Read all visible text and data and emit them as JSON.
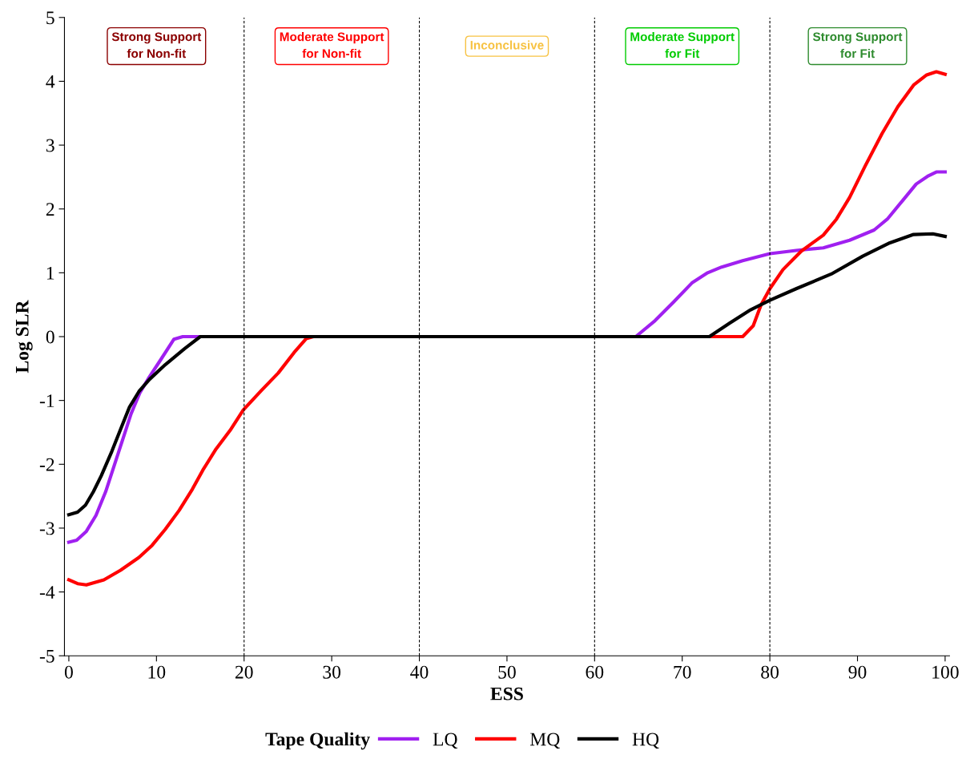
{
  "chart_data": {
    "type": "line",
    "xlabel": "ESS",
    "ylabel": "Log SLR",
    "legend_title": "Tape Quality",
    "xlim": [
      -0.5,
      100.5
    ],
    "ylim": [
      -5,
      5
    ],
    "xticks": [
      0,
      10,
      20,
      30,
      40,
      50,
      60,
      70,
      80,
      90,
      100
    ],
    "yticks": [
      -5,
      -4,
      -3,
      -2,
      -1,
      0,
      1,
      2,
      3,
      4,
      5
    ],
    "grid": false,
    "legend": "bottom",
    "marker": "none",
    "line_style": "solid",
    "series": [
      {
        "name": "LQ",
        "color": "#a020f0",
        "x": [
          0,
          0.9,
          2.0,
          3.1,
          4.2,
          5.2,
          6.2,
          7.1,
          8.1,
          9.2,
          10.4,
          12.0,
          13,
          64.7,
          66.9,
          69.0,
          71.1,
          72.9,
          74.5,
          76.9,
          80.0,
          83.0,
          86.1,
          89.1,
          91.9,
          93.4,
          95.2,
          96.7,
          98.1,
          99.0,
          100
        ],
        "values": [
          -3.22,
          -3.19,
          -3.05,
          -2.8,
          -2.43,
          -2.01,
          -1.59,
          -1.21,
          -0.88,
          -0.63,
          -0.38,
          -0.04,
          0,
          0,
          0.25,
          0.54,
          0.84,
          1.0,
          1.09,
          1.19,
          1.3,
          1.35,
          1.39,
          1.51,
          1.67,
          1.84,
          2.14,
          2.39,
          2.52,
          2.58,
          2.58
        ]
      },
      {
        "name": "MQ",
        "color": "#ff0000",
        "x": [
          0,
          1,
          2.0,
          4.0,
          5.9,
          8.0,
          9.5,
          11.0,
          12.6,
          14.1,
          15.3,
          16.8,
          18.4,
          19.9,
          22.0,
          23.9,
          25.7,
          27.1,
          27.9,
          76.9,
          78.1,
          79.0,
          80.0,
          81.5,
          83.6,
          86.1,
          87.6,
          89.1,
          90.9,
          92.8,
          94.6,
          96.4,
          97.9,
          99.0,
          100
        ],
        "values": [
          -3.81,
          -3.87,
          -3.89,
          -3.81,
          -3.66,
          -3.46,
          -3.27,
          -3.02,
          -2.72,
          -2.39,
          -2.09,
          -1.76,
          -1.47,
          -1.15,
          -0.84,
          -0.57,
          -0.25,
          -0.03,
          0,
          0,
          0.17,
          0.5,
          0.75,
          1.05,
          1.34,
          1.59,
          1.84,
          2.18,
          2.68,
          3.18,
          3.6,
          3.94,
          4.1,
          4.15,
          4.11
        ]
      },
      {
        "name": "HQ",
        "color": "#000000",
        "x": [
          0,
          1,
          1.9,
          2.8,
          3.7,
          4.9,
          6.0,
          6.9,
          8.0,
          9.2,
          11.0,
          13.2,
          15,
          73.1,
          75.4,
          77.8,
          80.0,
          83.0,
          87.0,
          90.6,
          93.7,
          96.4,
          98.6,
          100
        ],
        "values": [
          -2.79,
          -2.75,
          -2.64,
          -2.43,
          -2.18,
          -1.8,
          -1.42,
          -1.11,
          -0.86,
          -0.67,
          -0.44,
          -0.19,
          0,
          0,
          0.21,
          0.42,
          0.57,
          0.75,
          0.98,
          1.26,
          1.47,
          1.6,
          1.61,
          1.57
        ]
      }
    ],
    "ref_lines": [
      {
        "axis": "x",
        "value": 20,
        "line_style": "dashed"
      },
      {
        "axis": "x",
        "value": 40,
        "line_style": "dashed"
      },
      {
        "axis": "x",
        "value": 60,
        "line_style": "dashed"
      },
      {
        "axis": "x",
        "value": 80,
        "line_style": "dashed"
      }
    ],
    "annotations": [
      "Strong Support\nfor Non-fit",
      "Moderate Support\nfor Non-fit",
      "Inconclusive",
      "Moderate Support\nfor Fit",
      "Strong Support\nfor Fit"
    ]
  }
}
